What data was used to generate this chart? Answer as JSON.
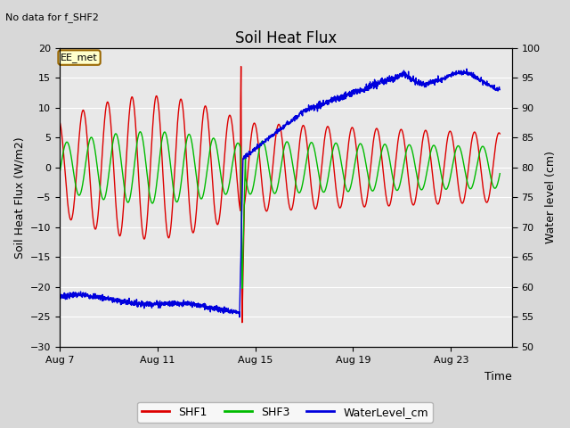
{
  "title": "Soil Heat Flux",
  "subtitle": "No data for f_SHF2",
  "ylabel_left": "Soil Heat Flux (W/m2)",
  "ylabel_right": "Water level (cm)",
  "xlabel": "Time",
  "annotation": "EE_met",
  "bg_color": "#d8d8d8",
  "plot_bg_color": "#e8e8e8",
  "ylim_left": [
    -30,
    20
  ],
  "ylim_right": [
    50,
    100
  ],
  "xtick_labels": [
    "Aug 7",
    "Aug 11",
    "Aug 15",
    "Aug 19",
    "Aug 23"
  ],
  "xtick_positions": [
    0,
    4,
    8,
    12,
    16
  ],
  "legend_labels": [
    "SHF1",
    "SHF3",
    "WaterLevel_cm"
  ],
  "legend_colors": [
    "#dd0000",
    "#00bb00",
    "#0000dd"
  ],
  "shf1_color": "#dd0000",
  "shf3_color": "#00bb00",
  "water_color": "#0000dd",
  "line_width": 1.0,
  "figsize": [
    6.4,
    4.8
  ],
  "dpi": 100
}
